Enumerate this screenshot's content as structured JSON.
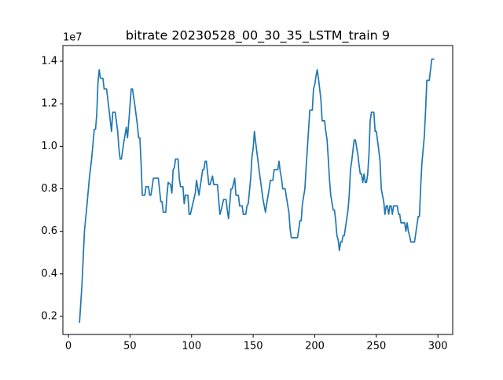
{
  "chart_data": {
    "type": "line",
    "title": "bitrate 20230528_00_30_35_LSTM_train 9",
    "y_offset_label": "1e7",
    "color": "#1f77b4",
    "x": [
      9,
      11,
      13,
      15,
      17,
      19,
      21,
      22,
      23,
      24,
      25,
      26,
      28,
      29,
      31,
      33,
      35,
      36,
      38,
      40,
      41,
      42,
      43,
      45,
      47,
      48,
      50,
      51,
      52,
      54,
      56,
      57,
      58,
      59,
      60,
      62,
      63,
      65,
      66,
      67,
      69,
      73,
      75,
      76,
      77,
      79,
      80,
      81,
      83,
      84,
      85,
      86,
      87,
      89,
      90,
      91,
      93,
      94,
      95,
      97,
      98,
      99,
      101,
      103,
      104,
      106,
      108,
      109,
      110,
      111,
      112,
      114,
      115,
      117,
      118,
      121,
      123,
      124,
      126,
      128,
      129,
      130,
      132,
      133,
      135,
      136,
      138,
      139,
      141,
      142,
      144,
      145,
      146,
      148,
      149,
      150,
      151,
      152,
      155,
      158,
      160,
      161,
      163,
      164,
      166,
      167,
      170,
      171,
      172,
      173,
      174,
      176,
      177,
      179,
      180,
      181,
      186,
      187,
      188,
      189,
      190,
      192,
      193,
      195,
      196,
      198,
      199,
      200,
      201,
      202,
      203,
      205,
      206,
      208,
      209,
      210,
      211,
      212,
      213,
      215,
      216,
      217,
      218,
      219,
      220,
      221,
      222,
      223,
      224,
      225,
      227,
      228,
      229,
      230,
      231,
      232,
      233,
      235,
      236,
      237,
      238,
      239,
      240,
      241,
      242,
      243,
      244,
      245,
      246,
      248,
      249,
      250,
      252,
      253,
      254,
      256,
      257,
      258,
      259,
      260,
      261,
      262,
      263,
      264,
      267,
      268,
      269,
      270,
      273,
      274,
      275,
      276,
      277,
      278,
      281,
      282,
      284,
      285,
      286,
      287,
      289,
      290,
      291,
      293,
      294,
      295,
      297
    ],
    "values": [
      0.17,
      0.35,
      0.6,
      0.72,
      0.85,
      0.95,
      1.08,
      1.08,
      1.15,
      1.3,
      1.36,
      1.32,
      1.32,
      1.27,
      1.27,
      1.17,
      1.07,
      1.16,
      1.16,
      1.07,
      0.99,
      0.94,
      0.94,
      1.02,
      1.09,
      1.04,
      1.19,
      1.27,
      1.27,
      1.19,
      1.1,
      1.04,
      1.04,
      0.92,
      0.77,
      0.77,
      0.81,
      0.81,
      0.77,
      0.77,
      0.85,
      0.85,
      0.74,
      0.74,
      0.69,
      0.69,
      0.77,
      0.83,
      0.82,
      0.78,
      0.89,
      0.9,
      0.94,
      0.94,
      0.85,
      0.81,
      0.81,
      0.73,
      0.77,
      0.77,
      0.68,
      0.68,
      0.73,
      0.78,
      0.84,
      0.77,
      0.85,
      0.89,
      0.89,
      0.93,
      0.93,
      0.82,
      0.82,
      0.86,
      0.82,
      0.82,
      0.68,
      0.7,
      0.75,
      0.75,
      0.7,
      0.66,
      0.8,
      0.8,
      0.85,
      0.77,
      0.77,
      0.72,
      0.72,
      0.68,
      0.68,
      0.72,
      0.73,
      0.85,
      0.95,
      0.99,
      1.07,
      1.02,
      0.88,
      0.75,
      0.69,
      0.73,
      0.8,
      0.84,
      0.84,
      0.89,
      0.89,
      0.93,
      0.88,
      0.85,
      0.8,
      0.8,
      0.76,
      0.69,
      0.61,
      0.57,
      0.57,
      0.61,
      0.65,
      0.65,
      0.73,
      0.8,
      0.9,
      1.08,
      1.17,
      1.17,
      1.27,
      1.29,
      1.33,
      1.36,
      1.32,
      1.22,
      1.12,
      1.12,
      1.07,
      1.03,
      0.94,
      0.84,
      0.77,
      0.7,
      0.7,
      0.65,
      0.58,
      0.56,
      0.51,
      0.55,
      0.55,
      0.58,
      0.58,
      0.62,
      0.7,
      0.77,
      0.89,
      0.93,
      0.98,
      1.03,
      1.03,
      0.96,
      0.91,
      0.87,
      0.87,
      0.83,
      0.87,
      0.83,
      0.83,
      0.87,
      0.96,
      1.12,
      1.16,
      1.16,
      1.07,
      1.07,
      0.98,
      0.93,
      0.8,
      0.74,
      0.68,
      0.72,
      0.72,
      0.68,
      0.72,
      0.72,
      0.68,
      0.72,
      0.72,
      0.68,
      0.68,
      0.64,
      0.64,
      0.6,
      0.64,
      0.6,
      0.58,
      0.55,
      0.55,
      0.59,
      0.67,
      0.67,
      0.81,
      0.92,
      1.05,
      1.17,
      1.31,
      1.31,
      1.36,
      1.41,
      1.41
    ],
    "xlim": [
      -4.5,
      312
    ],
    "ylim": [
      0.115,
      1.474
    ],
    "xticks": [
      0,
      50,
      100,
      150,
      200,
      250,
      300
    ],
    "yticks": [
      0.2,
      0.4,
      0.6,
      0.8,
      {
        "value": 1,
        "label": "1.0"
      },
      1.2,
      1.4
    ]
  }
}
